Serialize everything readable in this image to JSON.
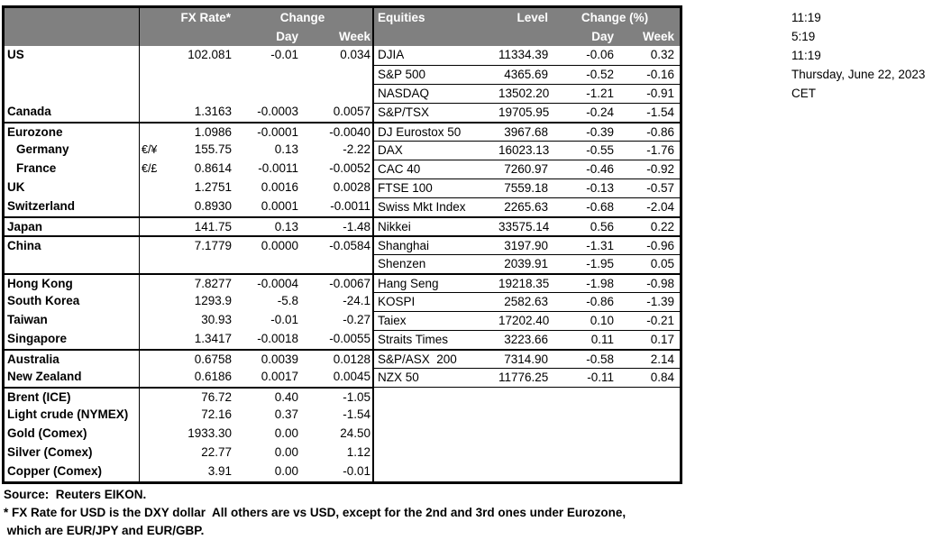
{
  "clock": {
    "lines": [
      "11:19",
      "5:19",
      "11:19",
      "Thursday, June 22, 2023",
      "CET"
    ]
  },
  "fx": {
    "header": {
      "rate": "FX Rate*",
      "change": "Change",
      "day": "Day",
      "week": "Week"
    },
    "rows": [
      {
        "label": "US",
        "pair": "",
        "rate": "102.081",
        "day": "-0.01",
        "week": "0.034"
      },
      {
        "label": "",
        "pair": "",
        "rate": "",
        "day": "",
        "week": ""
      },
      {
        "label": "",
        "pair": "",
        "rate": "",
        "day": "",
        "week": ""
      },
      {
        "label": "Canada",
        "pair": "",
        "rate": "1.3163",
        "day": "-0.0003",
        "week": "0.0057"
      },
      {
        "label": "Eurozone",
        "pair": "",
        "rate": "1.0986",
        "day": "-0.0001",
        "week": "-0.0040",
        "sep": true
      },
      {
        "label": "Germany",
        "pair": "€/¥",
        "rate": "155.75",
        "day": "0.13",
        "week": "-2.22",
        "indent": true
      },
      {
        "label": "France",
        "pair": "€/£",
        "rate": "0.8614",
        "day": "-0.0011",
        "week": "-0.0052",
        "indent": true
      },
      {
        "label": "UK",
        "pair": "",
        "rate": "1.2751",
        "day": "0.0016",
        "week": "0.0028"
      },
      {
        "label": "Switzerland",
        "pair": "",
        "rate": "0.8930",
        "day": "0.0001",
        "week": "-0.0011"
      },
      {
        "label": "Japan",
        "pair": "",
        "rate": "141.75",
        "day": "0.13",
        "week": "-1.48",
        "sep": true
      },
      {
        "label": "China",
        "pair": "",
        "rate": "7.1779",
        "day": "0.0000",
        "week": "-0.0584",
        "sep": true
      },
      {
        "label": "",
        "pair": "",
        "rate": "",
        "day": "",
        "week": ""
      },
      {
        "label": "Hong Kong",
        "pair": "",
        "rate": "7.8277",
        "day": "-0.0004",
        "week": "-0.0067",
        "sep": true
      },
      {
        "label": "South Korea",
        "pair": "",
        "rate": "1293.9",
        "day": "-5.8",
        "week": "-24.1"
      },
      {
        "label": "Taiwan",
        "pair": "",
        "rate": "30.93",
        "day": "-0.01",
        "week": "-0.27"
      },
      {
        "label": "Singapore",
        "pair": "",
        "rate": "1.3417",
        "day": "-0.0018",
        "week": "-0.0055"
      },
      {
        "label": "Australia",
        "pair": "",
        "rate": "0.6758",
        "day": "0.0039",
        "week": "0.0128",
        "sep": true
      },
      {
        "label": "New Zealand",
        "pair": "",
        "rate": "0.6186",
        "day": "0.0017",
        "week": "0.0045"
      },
      {
        "label": "Brent (ICE)",
        "pair": "",
        "rate": "76.72",
        "day": "0.40",
        "week": "-1.05",
        "sep": true
      },
      {
        "label": "Light crude (NYMEX)",
        "pair": "",
        "rate": "72.16",
        "day": "0.37",
        "week": "-1.54"
      },
      {
        "label": "Gold (Comex)",
        "pair": "",
        "rate": "1933.30",
        "day": "0.00",
        "week": "24.50"
      },
      {
        "label": "Silver (Comex)",
        "pair": "",
        "rate": "22.77",
        "day": "0.00",
        "week": "1.12"
      },
      {
        "label": "Copper (Comex)",
        "pair": "",
        "rate": "3.91",
        "day": "0.00",
        "week": "-0.01"
      }
    ]
  },
  "equities": {
    "header": {
      "title": "Equities",
      "level": "Level",
      "change": "Change (%)",
      "day": "Day",
      "week": "Week"
    },
    "rows": [
      {
        "label": "DJIA",
        "level": "11334.39",
        "day": "-0.06",
        "week": "0.32"
      },
      {
        "label": "S&P 500",
        "level": "4365.69",
        "day": "-0.52",
        "week": "-0.16"
      },
      {
        "label": "NASDAQ",
        "level": "13502.20",
        "day": "-1.21",
        "week": "-0.91"
      },
      {
        "label": "S&P/TSX",
        "level": "19705.95",
        "day": "-0.24",
        "week": "-1.54"
      },
      {
        "label": "DJ Eurostox 50",
        "level": "3967.68",
        "day": "-0.39",
        "week": "-0.86",
        "sep": true
      },
      {
        "label": "DAX",
        "level": "16023.13",
        "day": "-0.55",
        "week": "-1.76"
      },
      {
        "label": "CAC 40",
        "level": "7260.97",
        "day": "-0.46",
        "week": "-0.92"
      },
      {
        "label": "FTSE 100",
        "level": "7559.18",
        "day": "-0.13",
        "week": "-0.57"
      },
      {
        "label": "Swiss Mkt Index",
        "level": "2265.63",
        "day": "-0.68",
        "week": "-2.04"
      },
      {
        "label": "Nikkei",
        "level": "33575.14",
        "day": "0.56",
        "week": "0.22",
        "sep": true
      },
      {
        "label": "Shanghai",
        "level": "3197.90",
        "day": "-1.31",
        "week": "-0.96",
        "sep": true
      },
      {
        "label": "Shenzen",
        "level": "2039.91",
        "day": "-1.95",
        "week": "0.05"
      },
      {
        "label": "Hang Seng",
        "level": "19218.35",
        "day": "-1.98",
        "week": "-0.98",
        "sep": true
      },
      {
        "label": "KOSPI",
        "level": "2582.63",
        "day": "-0.86",
        "week": "-1.39"
      },
      {
        "label": "Taiex",
        "level": "17202.40",
        "day": "0.10",
        "week": "-0.21"
      },
      {
        "label": "Straits Times",
        "level": "3223.66",
        "day": "0.11",
        "week": "0.17"
      },
      {
        "label": "S&P/ASX  200",
        "level": "7314.90",
        "day": "-0.58",
        "week": "2.14",
        "sep": true
      },
      {
        "label": "NZX 50",
        "level": "11776.25",
        "day": "-0.11",
        "week": "0.84"
      }
    ]
  },
  "footer": {
    "source": "Source:  Reuters EIKON.",
    "note1": "* FX Rate for USD is the DXY dollar  All others are vs USD, except for the 2nd and 3rd ones under Eurozone,",
    "note2": " which are EUR/JPY and EUR/GBP."
  },
  "colors": {
    "header_bg": "#808080",
    "header_text": "#ffffff",
    "border": "#000000",
    "text": "#000000",
    "background": "#ffffff"
  }
}
